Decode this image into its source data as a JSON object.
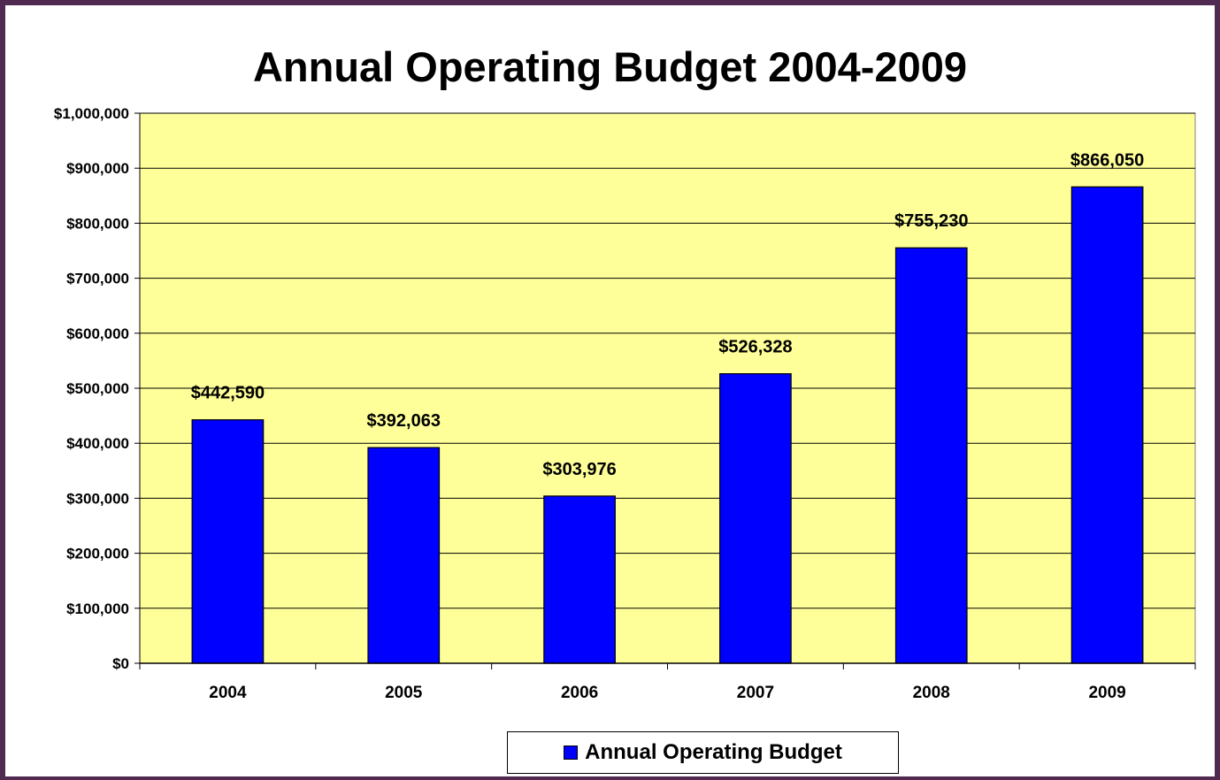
{
  "chart_data": {
    "type": "bar",
    "title": "Annual Operating Budget 2004-2009",
    "xlabel": "",
    "ylabel": "",
    "categories": [
      "2004",
      "2005",
      "2006",
      "2007",
      "2008",
      "2009"
    ],
    "series": [
      {
        "name": "Annual Operating Budget",
        "values": [
          442590,
          392063,
          303976,
          526328,
          755230,
          866050
        ]
      }
    ],
    "data_labels": [
      "$442,590",
      "$392,063",
      "$303,976",
      "$526,328",
      "$755,230",
      "$866,050"
    ],
    "ylim": [
      0,
      1000000
    ],
    "y_ticks": [
      0,
      100000,
      200000,
      300000,
      400000,
      500000,
      600000,
      700000,
      800000,
      900000,
      1000000
    ],
    "y_tick_labels": [
      "$0",
      "$100,000",
      "$200,000",
      "$300,000",
      "$400,000",
      "$500,000",
      "$600,000",
      "$700,000",
      "$800,000",
      "$900,000",
      "$1,000,000"
    ],
    "grid": true,
    "legend_position": "bottom",
    "colors": {
      "bar": "#0000ff",
      "plot_background": "#ffff99",
      "frame_border": "#512a52"
    }
  }
}
